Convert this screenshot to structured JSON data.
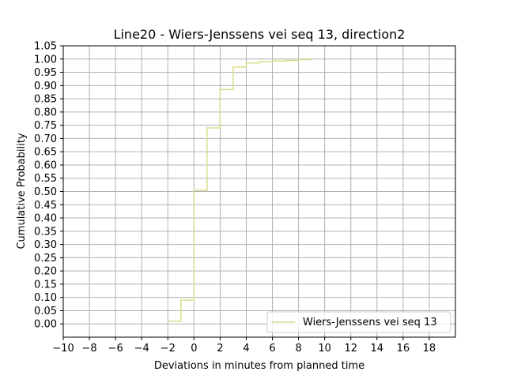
{
  "chart_data": {
    "type": "line",
    "step": "post",
    "title": "Line20 - Wiers-Jenssens vei seq 13, direction2",
    "xlabel": "Deviations in minutes from planned time",
    "ylabel": "Cumulative Probability",
    "xlim": [
      -10,
      20
    ],
    "ylim": [
      -0.05,
      1.05
    ],
    "xticks": [
      -10,
      -8,
      -6,
      -4,
      -2,
      0,
      2,
      4,
      6,
      8,
      10,
      12,
      14,
      16,
      18
    ],
    "xtick_labels": [
      "−10",
      "−8",
      "−6",
      "−4",
      "−2",
      "0",
      "2",
      "4",
      "6",
      "8",
      "10",
      "12",
      "14",
      "16",
      "18"
    ],
    "yticks": [
      0.0,
      0.05,
      0.1,
      0.15,
      0.2,
      0.25,
      0.3,
      0.35,
      0.4,
      0.45,
      0.5,
      0.55,
      0.6,
      0.65,
      0.7,
      0.75,
      0.8,
      0.85,
      0.9,
      0.95,
      1.0,
      1.05
    ],
    "ytick_labels": [
      "0.00",
      "0.05",
      "0.10",
      "0.15",
      "0.20",
      "0.25",
      "0.30",
      "0.35",
      "0.40",
      "0.45",
      "0.50",
      "0.55",
      "0.60",
      "0.65",
      "0.70",
      "0.75",
      "0.80",
      "0.85",
      "0.90",
      "0.95",
      "1.00",
      "1.05"
    ],
    "grid": true,
    "legend_position": "lower-right",
    "series": [
      {
        "name": "Wiers-Jenssens vei seq 13",
        "color": "#dbdb8d",
        "x": [
          -2,
          -1,
          0,
          1,
          2,
          3,
          4,
          5,
          6,
          7,
          8,
          9
        ],
        "y": [
          0.01,
          0.09,
          0.505,
          0.74,
          0.885,
          0.97,
          0.985,
          0.99,
          0.993,
          0.995,
          0.998,
          1.0
        ]
      }
    ]
  }
}
